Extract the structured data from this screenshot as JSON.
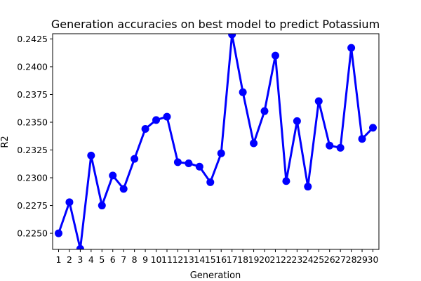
{
  "chart_data": {
    "type": "line",
    "title": "Generation accuracies on best model to predict Potassium",
    "xlabel": "Generation",
    "ylabel": "R2",
    "x": [
      1,
      2,
      3,
      4,
      5,
      6,
      7,
      8,
      9,
      10,
      11,
      12,
      13,
      14,
      15,
      16,
      17,
      18,
      19,
      20,
      21,
      22,
      23,
      24,
      25,
      26,
      27,
      28,
      29,
      30
    ],
    "x_tick_labels": [
      "1",
      "2",
      "3",
      "4",
      "5",
      "6",
      "7",
      "8",
      "9",
      "10",
      "11",
      "12",
      "13",
      "14",
      "15",
      "16",
      "17",
      "18",
      "19",
      "20",
      "21",
      "22",
      "23",
      "24",
      "25",
      "26",
      "27",
      "28",
      "29",
      "30"
    ],
    "y_ticks": [
      0.225,
      0.2275,
      0.23,
      0.2325,
      0.235,
      0.2375,
      0.24,
      0.2425
    ],
    "y_tick_labels": [
      "0.2250",
      "0.2275",
      "0.2300",
      "0.2325",
      "0.2350",
      "0.2375",
      "0.2400",
      "0.2425"
    ],
    "ylim": [
      0.22355,
      0.24297
    ],
    "grid": false,
    "series": [
      {
        "color": "#0000ff",
        "values": [
          0.225,
          0.2278,
          0.2236,
          0.232,
          0.2275,
          0.2302,
          0.229,
          0.2317,
          0.2344,
          0.2352,
          0.2355,
          0.2314,
          0.2313,
          0.231,
          0.2296,
          0.2322,
          0.2429,
          0.2377,
          0.2331,
          0.236,
          0.241,
          0.2297,
          0.2351,
          0.2292,
          0.2369,
          0.2329,
          0.2327,
          0.2417,
          0.2335,
          0.2345
        ]
      }
    ]
  }
}
